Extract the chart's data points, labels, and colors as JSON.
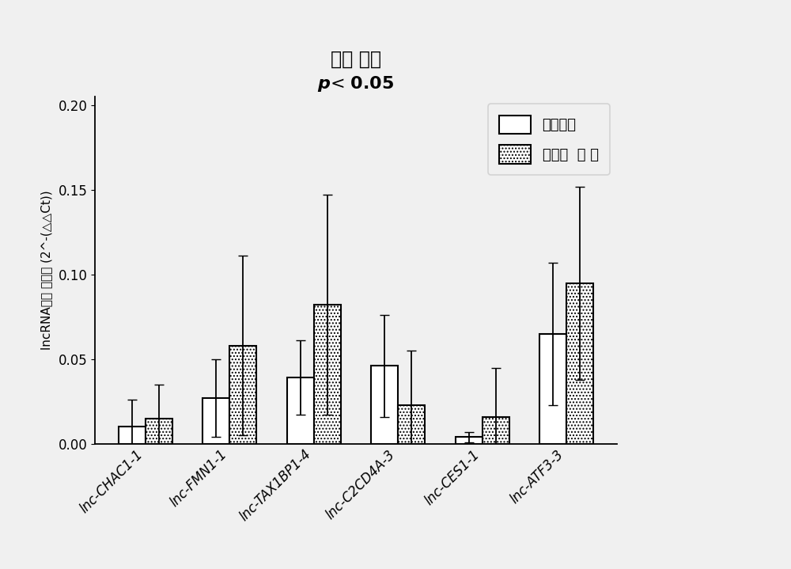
{
  "title_line1": "血清 组织",
  "title_line2": "p< 0.05",
  "ylabel": "lncRNA相对 表达量 (2^-(△△Ct))",
  "categories": [
    "lnc-CHAC1-1",
    "lnc-FMN1-1",
    "lnc-TAX1BP1-4",
    "lnc-C2CD4A-3",
    "lnc-CES1-1",
    "lnc-ATF3-3"
  ],
  "normal_values": [
    0.01,
    0.027,
    0.039,
    0.046,
    0.004,
    0.065
  ],
  "normal_errors": [
    0.016,
    0.023,
    0.022,
    0.03,
    0.003,
    0.042
  ],
  "recurrent_values": [
    0.015,
    0.058,
    0.082,
    0.023,
    0.016,
    0.095
  ],
  "recurrent_errors": [
    0.02,
    0.053,
    0.065,
    0.032,
    0.029,
    0.057
  ],
  "ylim": [
    0.0,
    0.205
  ],
  "yticks": [
    0.0,
    0.05,
    0.1,
    0.15,
    0.2
  ],
  "legend_normal": "正常对照",
  "legend_recurrent": "复发性  流 产",
  "bar_width": 0.32,
  "normal_color": "#ffffff",
  "normal_edgecolor": "#000000",
  "recurrent_edgecolor": "#000000",
  "background_color": "#f0f0f0",
  "figsize": [
    10.0,
    7.19
  ],
  "dpi": 100
}
